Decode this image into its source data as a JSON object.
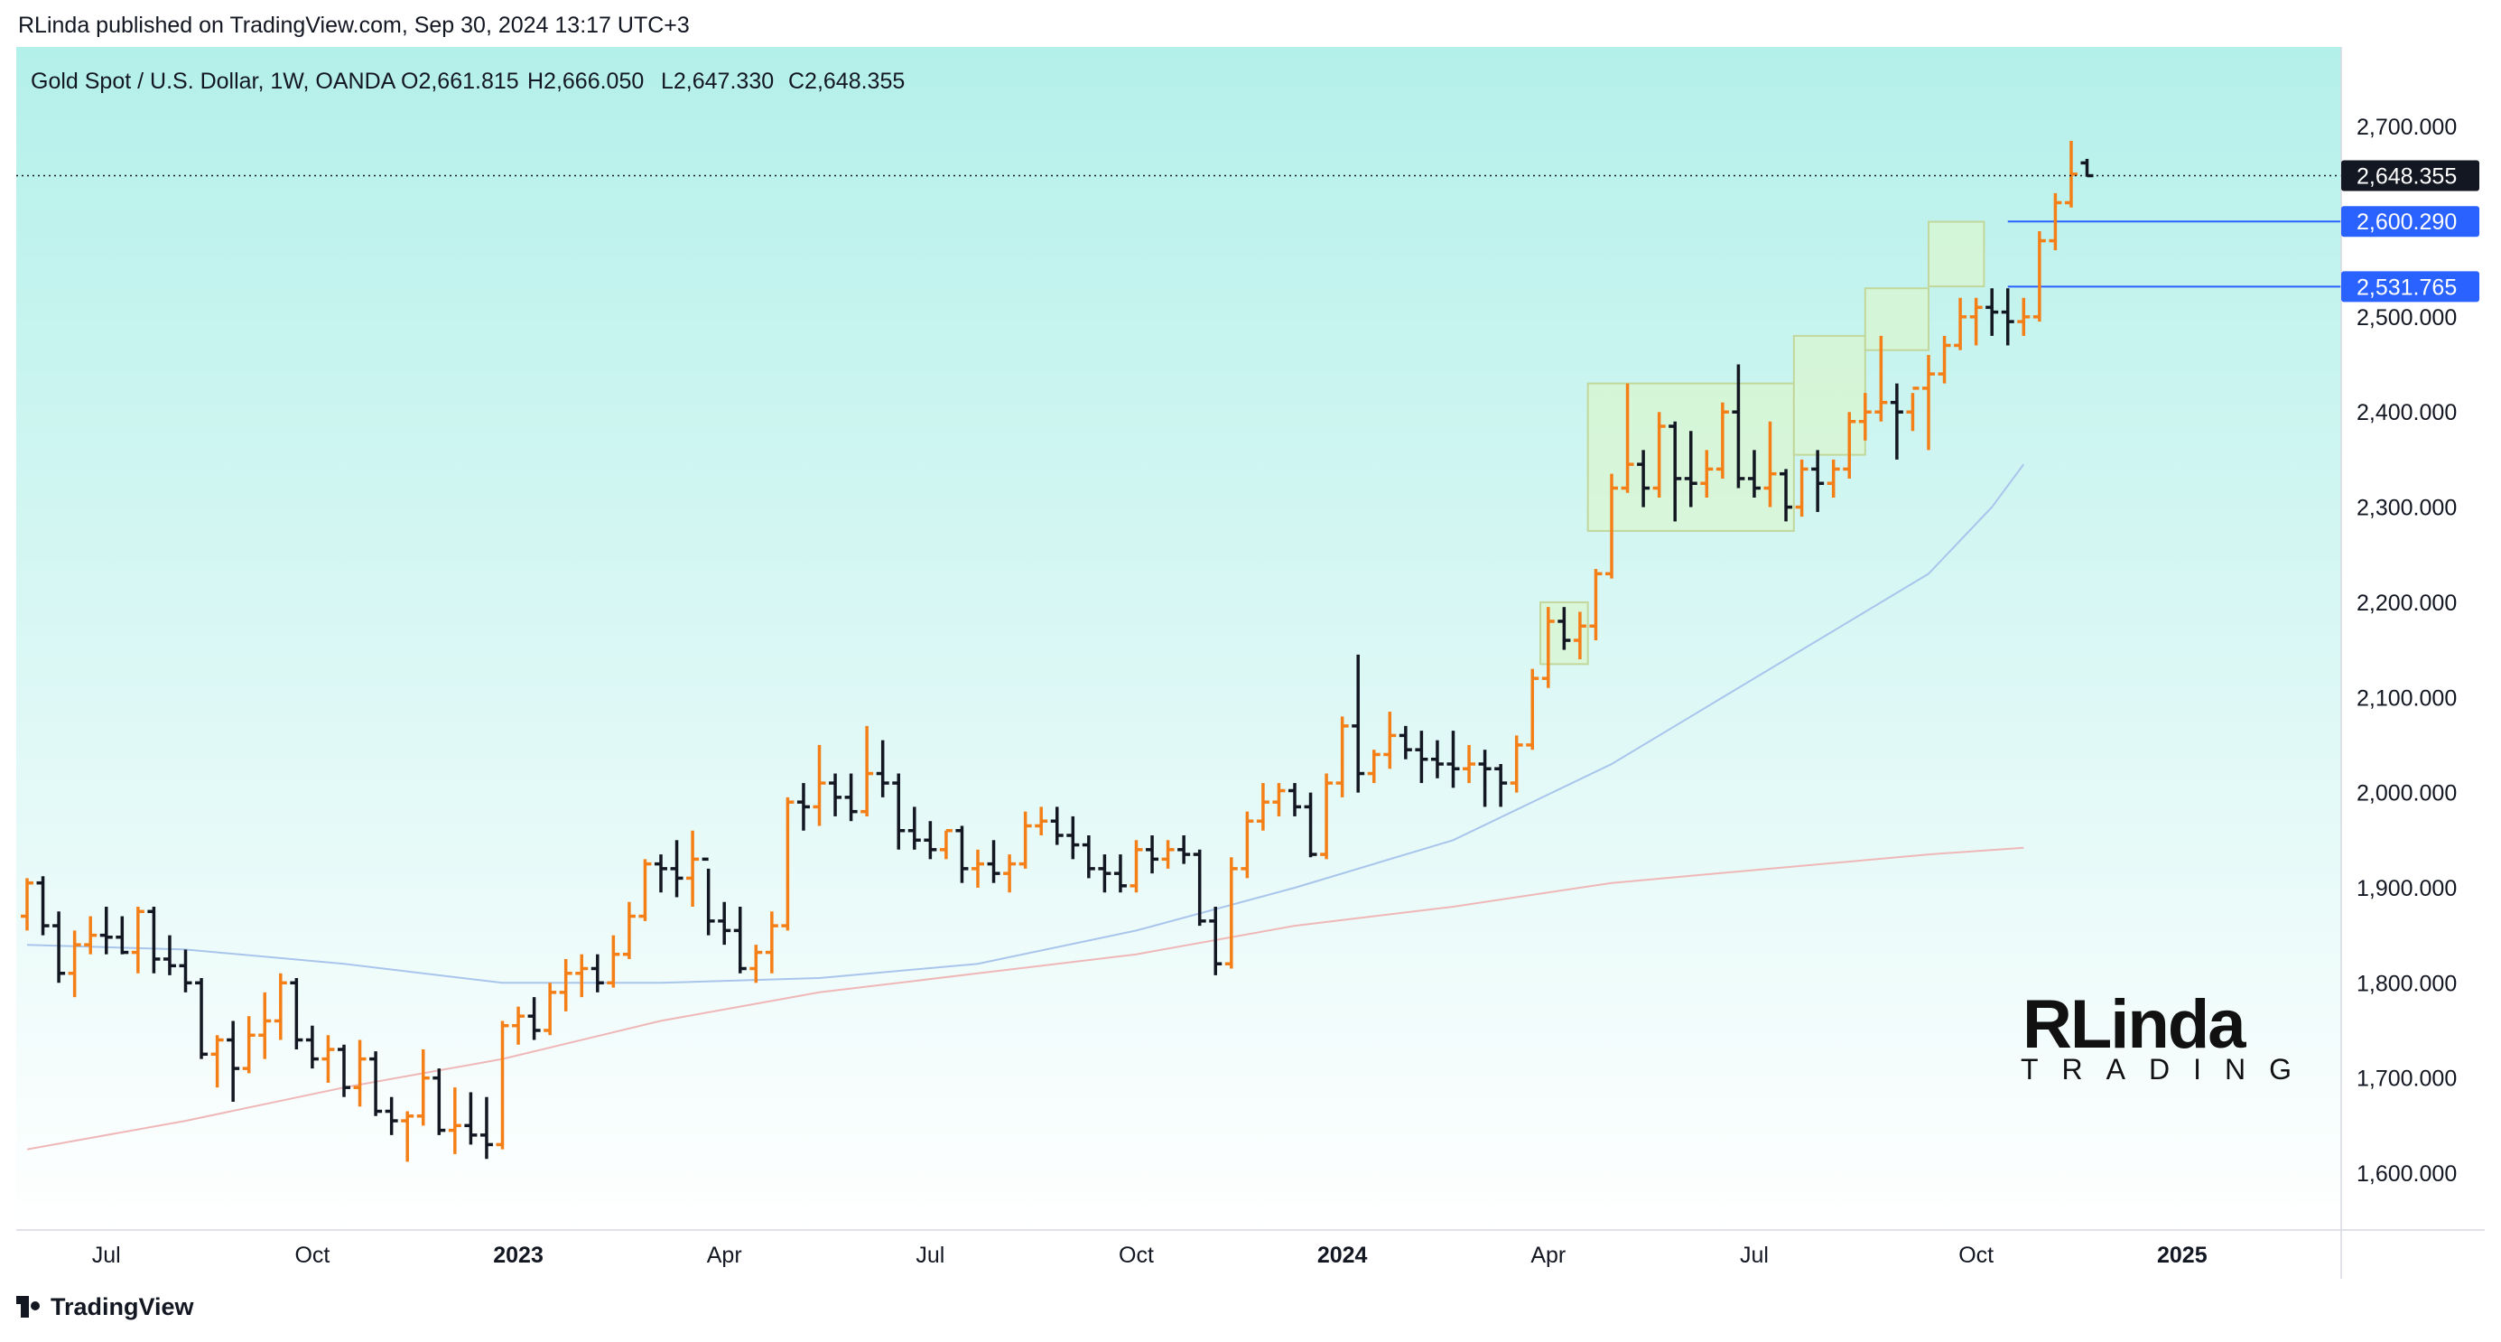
{
  "header": {
    "published": "RLinda published on TradingView.com, Sep 30, 2024 13:17 UTC+3"
  },
  "legend": {
    "symbol": "Gold Spot / U.S. Dollar, 1W, OANDA",
    "open": "O2,661.815",
    "high": "H2,666.050",
    "low": "L2,647.330",
    "close": "C2,648.355"
  },
  "price_tags": {
    "last": "2,648.355",
    "level_1": "2,600.290",
    "level_2": "2,531.765"
  },
  "watermark": {
    "line1": "RLinda",
    "line2": "TRADING"
  },
  "footer": {
    "brand": "TradingView"
  },
  "colors": {
    "background_top": "#b4f0ea",
    "background_bottom": "#ffffff",
    "bull_bar": "#f57f17",
    "bear_bar": "#131722",
    "ma_fast": "#a9c5ec",
    "ma_slow": "#efb7b7",
    "level_line": "#2962ff",
    "zone_fill": "#d9f5d0",
    "zone_stroke": "#c2d79b"
  },
  "chart_data": {
    "type": "ohlc",
    "timeframe": "1W",
    "ylim": [
      1540,
      2780
    ],
    "y_ticks": [
      1600,
      1700,
      1800,
      1900,
      2000,
      2100,
      2200,
      2300,
      2400,
      2500,
      2600,
      2700
    ],
    "y_tick_labels": [
      "1,600.000",
      "1,700.000",
      "1,800.000",
      "1,900.000",
      "2,000.000",
      "2,100.000",
      "2,200.000",
      "2,300.000",
      "2,400.000",
      "2,500.000",
      "2,600.000",
      "2,700.000"
    ],
    "x_tick_labels": [
      {
        "week": 5,
        "label": "Jul",
        "bold": false
      },
      {
        "week": 18,
        "label": "Oct",
        "bold": false
      },
      {
        "week": 31,
        "label": "2023",
        "bold": true
      },
      {
        "week": 44,
        "label": "Apr",
        "bold": false
      },
      {
        "week": 57,
        "label": "Jul",
        "bold": false
      },
      {
        "week": 70,
        "label": "Oct",
        "bold": false
      },
      {
        "week": 83,
        "label": "2024",
        "bold": true
      },
      {
        "week": 96,
        "label": "Apr",
        "bold": false
      },
      {
        "week": 109,
        "label": "Jul",
        "bold": false
      },
      {
        "week": 123,
        "label": "Oct",
        "bold": false
      },
      {
        "week": 136,
        "label": "2025",
        "bold": true
      }
    ],
    "last_price": 2648.355,
    "horizontal_levels": [
      2600.29,
      2531.765
    ],
    "ohlc": [
      [
        1870,
        1910,
        1855,
        1905
      ],
      [
        1905,
        1912,
        1850,
        1860
      ],
      [
        1860,
        1875,
        1800,
        1810
      ],
      [
        1810,
        1855,
        1785,
        1840
      ],
      [
        1840,
        1870,
        1830,
        1850
      ],
      [
        1850,
        1880,
        1830,
        1848
      ],
      [
        1848,
        1870,
        1830,
        1832
      ],
      [
        1832,
        1880,
        1810,
        1875
      ],
      [
        1875,
        1880,
        1810,
        1825
      ],
      [
        1825,
        1850,
        1808,
        1818
      ],
      [
        1818,
        1835,
        1790,
        1800
      ],
      [
        1800,
        1805,
        1720,
        1725
      ],
      [
        1725,
        1745,
        1690,
        1740
      ],
      [
        1740,
        1760,
        1675,
        1710
      ],
      [
        1710,
        1765,
        1705,
        1745
      ],
      [
        1745,
        1790,
        1720,
        1760
      ],
      [
        1760,
        1810,
        1740,
        1800
      ],
      [
        1800,
        1805,
        1730,
        1740
      ],
      [
        1740,
        1755,
        1710,
        1720
      ],
      [
        1720,
        1745,
        1695,
        1730
      ],
      [
        1730,
        1735,
        1680,
        1690
      ],
      [
        1690,
        1740,
        1670,
        1720
      ],
      [
        1720,
        1728,
        1660,
        1665
      ],
      [
        1665,
        1680,
        1640,
        1655
      ],
      [
        1655,
        1665,
        1612,
        1660
      ],
      [
        1660,
        1730,
        1650,
        1700
      ],
      [
        1700,
        1710,
        1640,
        1645
      ],
      [
        1645,
        1690,
        1620,
        1650
      ],
      [
        1650,
        1685,
        1630,
        1640
      ],
      [
        1640,
        1680,
        1615,
        1630
      ],
      [
        1630,
        1760,
        1625,
        1755
      ],
      [
        1755,
        1775,
        1735,
        1765
      ],
      [
        1765,
        1785,
        1740,
        1750
      ],
      [
        1750,
        1800,
        1745,
        1790
      ],
      [
        1790,
        1825,
        1770,
        1810
      ],
      [
        1810,
        1830,
        1785,
        1815
      ],
      [
        1815,
        1830,
        1790,
        1800
      ],
      [
        1800,
        1850,
        1795,
        1830
      ],
      [
        1830,
        1885,
        1825,
        1870
      ],
      [
        1870,
        1930,
        1865,
        1925
      ],
      [
        1925,
        1935,
        1895,
        1920
      ],
      [
        1920,
        1950,
        1890,
        1910
      ],
      [
        1910,
        1960,
        1880,
        1930
      ],
      [
        1930,
        1920,
        1850,
        1865
      ],
      [
        1865,
        1885,
        1840,
        1855
      ],
      [
        1855,
        1880,
        1810,
        1815
      ],
      [
        1815,
        1840,
        1800,
        1832
      ],
      [
        1832,
        1875,
        1810,
        1860
      ],
      [
        1860,
        1995,
        1855,
        1990
      ],
      [
        1990,
        2010,
        1960,
        1985
      ],
      [
        1985,
        2050,
        1965,
        2010
      ],
      [
        2010,
        2020,
        1975,
        1995
      ],
      [
        1995,
        2020,
        1970,
        1980
      ],
      [
        1980,
        2070,
        1975,
        2020
      ],
      [
        2020,
        2055,
        1995,
        2010
      ],
      [
        2010,
        2020,
        1940,
        1960
      ],
      [
        1960,
        1985,
        1940,
        1950
      ],
      [
        1950,
        1970,
        1930,
        1940
      ],
      [
        1940,
        1960,
        1930,
        1960
      ],
      [
        1960,
        1965,
        1905,
        1920
      ],
      [
        1920,
        1940,
        1900,
        1925
      ],
      [
        1925,
        1950,
        1905,
        1915
      ],
      [
        1915,
        1935,
        1895,
        1925
      ],
      [
        1925,
        1980,
        1920,
        1965
      ],
      [
        1965,
        1985,
        1955,
        1970
      ],
      [
        1970,
        1985,
        1945,
        1955
      ],
      [
        1955,
        1975,
        1930,
        1945
      ],
      [
        1945,
        1955,
        1910,
        1920
      ],
      [
        1920,
        1935,
        1895,
        1915
      ],
      [
        1915,
        1935,
        1895,
        1902
      ],
      [
        1902,
        1950,
        1895,
        1940
      ],
      [
        1940,
        1955,
        1915,
        1930
      ],
      [
        1930,
        1950,
        1920,
        1940
      ],
      [
        1940,
        1955,
        1925,
        1935
      ],
      [
        1935,
        1940,
        1860,
        1865
      ],
      [
        1865,
        1880,
        1808,
        1820
      ],
      [
        1820,
        1932,
        1815,
        1920
      ],
      [
        1920,
        1980,
        1910,
        1970
      ],
      [
        1970,
        2010,
        1960,
        1990
      ],
      [
        1990,
        2010,
        1975,
        2002
      ],
      [
        2002,
        2010,
        1975,
        1985
      ],
      [
        1985,
        2000,
        1932,
        1935
      ],
      [
        1935,
        2020,
        1930,
        2010
      ],
      [
        2010,
        2080,
        1995,
        2070
      ],
      [
        2070,
        2145,
        2000,
        2020
      ],
      [
        2020,
        2045,
        2010,
        2040
      ],
      [
        2040,
        2085,
        2025,
        2060
      ],
      [
        2060,
        2070,
        2035,
        2045
      ],
      [
        2045,
        2065,
        2010,
        2035
      ],
      [
        2035,
        2055,
        2015,
        2030
      ],
      [
        2030,
        2065,
        2005,
        2025
      ],
      [
        2025,
        2050,
        2010,
        2030
      ],
      [
        2030,
        2045,
        1985,
        2025
      ],
      [
        2025,
        2030,
        1985,
        2010
      ],
      [
        2010,
        2060,
        2000,
        2050
      ],
      [
        2050,
        2130,
        2045,
        2120
      ],
      [
        2120,
        2195,
        2110,
        2180
      ],
      [
        2180,
        2195,
        2150,
        2160
      ],
      [
        2160,
        2190,
        2140,
        2175
      ],
      [
        2175,
        2235,
        2160,
        2230
      ],
      [
        2230,
        2335,
        2225,
        2320
      ],
      [
        2320,
        2430,
        2315,
        2345
      ],
      [
        2345,
        2360,
        2300,
        2320
      ],
      [
        2320,
        2400,
        2310,
        2385
      ],
      [
        2385,
        2390,
        2285,
        2330
      ],
      [
        2330,
        2380,
        2300,
        2325
      ],
      [
        2325,
        2360,
        2310,
        2340
      ],
      [
        2340,
        2410,
        2330,
        2400
      ],
      [
        2400,
        2450,
        2320,
        2330
      ],
      [
        2330,
        2360,
        2310,
        2320
      ],
      [
        2320,
        2390,
        2300,
        2335
      ],
      [
        2335,
        2340,
        2285,
        2300
      ],
      [
        2300,
        2350,
        2290,
        2340
      ],
      [
        2340,
        2360,
        2295,
        2325
      ],
      [
        2325,
        2350,
        2310,
        2340
      ],
      [
        2340,
        2400,
        2330,
        2390
      ],
      [
        2390,
        2420,
        2370,
        2400
      ],
      [
        2400,
        2480,
        2390,
        2410
      ],
      [
        2410,
        2430,
        2350,
        2400
      ],
      [
        2400,
        2420,
        2380,
        2425
      ],
      [
        2425,
        2460,
        2360,
        2440
      ],
      [
        2440,
        2480,
        2430,
        2470
      ],
      [
        2470,
        2520,
        2465,
        2500
      ],
      [
        2500,
        2520,
        2470,
        2510
      ],
      [
        2510,
        2530,
        2480,
        2505
      ],
      [
        2505,
        2530,
        2470,
        2495
      ],
      [
        2495,
        2520,
        2480,
        2500
      ],
      [
        2500,
        2590,
        2495,
        2580
      ],
      [
        2580,
        2630,
        2570,
        2620
      ],
      [
        2620,
        2685,
        2615,
        2650
      ],
      [
        2661.815,
        2666.05,
        2647.33,
        2648.355
      ]
    ],
    "ma_fast": [
      [
        0,
        1840
      ],
      [
        10,
        1835
      ],
      [
        20,
        1820
      ],
      [
        30,
        1800
      ],
      [
        40,
        1800
      ],
      [
        50,
        1805
      ],
      [
        60,
        1820
      ],
      [
        70,
        1855
      ],
      [
        80,
        1900
      ],
      [
        90,
        1950
      ],
      [
        95,
        1990
      ],
      [
        100,
        2030
      ],
      [
        105,
        2080
      ],
      [
        110,
        2130
      ],
      [
        115,
        2180
      ],
      [
        120,
        2230
      ],
      [
        124,
        2300
      ],
      [
        126,
        2345
      ]
    ],
    "ma_slow": [
      [
        0,
        1625
      ],
      [
        10,
        1655
      ],
      [
        20,
        1690
      ],
      [
        30,
        1720
      ],
      [
        40,
        1760
      ],
      [
        50,
        1790
      ],
      [
        60,
        1810
      ],
      [
        70,
        1830
      ],
      [
        80,
        1860
      ],
      [
        90,
        1880
      ],
      [
        100,
        1905
      ],
      [
        110,
        1920
      ],
      [
        120,
        1935
      ],
      [
        126,
        1942
      ]
    ],
    "zones": [
      {
        "w0": 95.5,
        "w1": 98.5,
        "lo": 2135,
        "hi": 2200
      },
      {
        "w0": 98.5,
        "w1": 111.5,
        "lo": 2275,
        "hi": 2430
      },
      {
        "w0": 111.5,
        "w1": 116,
        "lo": 2355,
        "hi": 2480
      },
      {
        "w0": 116,
        "w1": 120,
        "lo": 2465,
        "hi": 2530
      },
      {
        "w0": 120,
        "w1": 123.5,
        "lo": 2532,
        "hi": 2600
      }
    ]
  }
}
